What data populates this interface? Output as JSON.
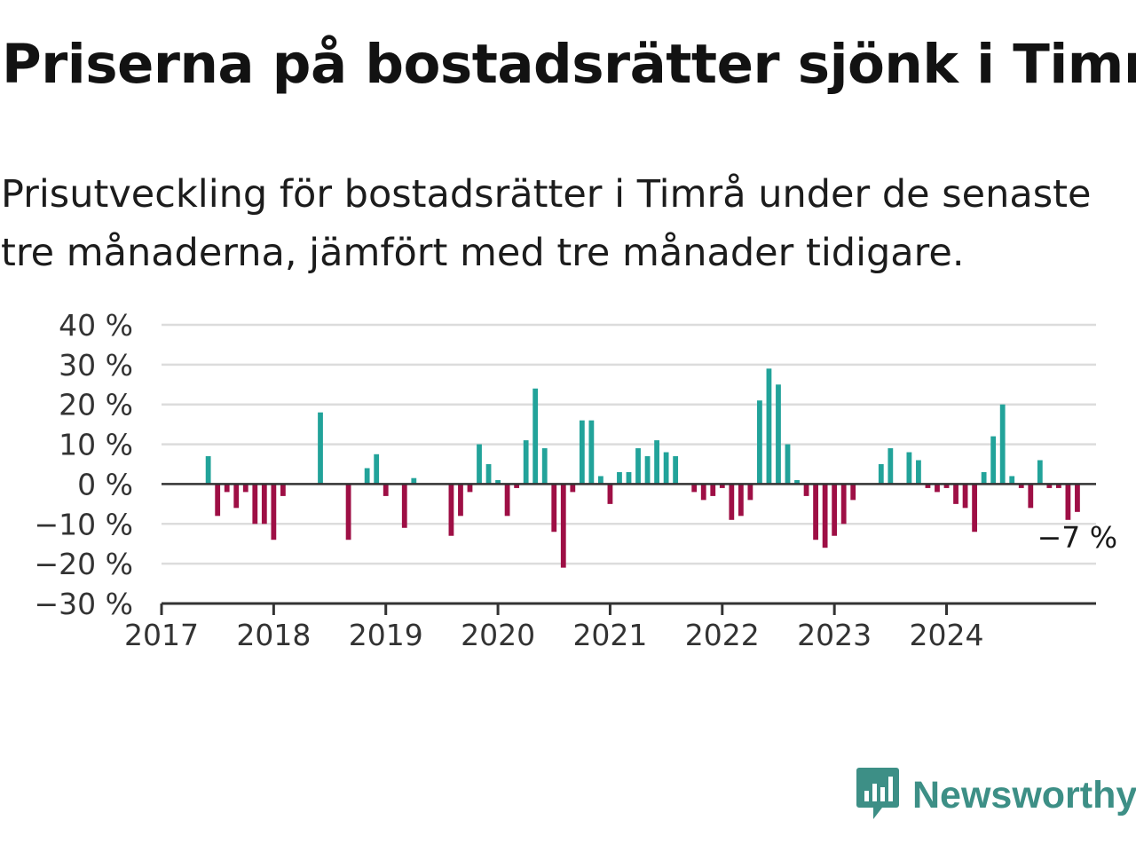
{
  "header": {
    "title": "Priserna på bostadsrätter sjönk i Timrå",
    "subtitle": "Prisutveckling för bostadsrätter i Timrå under de senaste tre månaderna, jämfört med tre månader tidigare."
  },
  "branding": {
    "logo_text": "Newsworthy",
    "logo_icon": "bar-chart-speech-bubble-icon"
  },
  "colors": {
    "positive": "#22a39a",
    "negative": "#9e0f45",
    "gridline": "#dcdcdc",
    "axis": "#333333",
    "brand": "#3d8f86"
  },
  "chart_data": {
    "type": "bar",
    "x_axis_type": "month",
    "start_month": "2017-06",
    "values": [
      7,
      -8,
      -2,
      -6,
      -2,
      -10,
      -10,
      -14,
      -3,
      0,
      0,
      0,
      18,
      0,
      0,
      -14,
      0,
      4,
      7.5,
      -3,
      0,
      -11,
      1.5,
      0,
      0,
      0,
      -13,
      -8,
      -2,
      10,
      5,
      1,
      -8,
      -1,
      11,
      24,
      9,
      -12,
      -21,
      -2,
      16,
      16,
      2,
      -5,
      3,
      3,
      9,
      7,
      11,
      8,
      7,
      0,
      -2,
      -4,
      -3,
      -1,
      -9,
      -8,
      -4,
      21,
      29,
      25,
      10,
      1,
      -3,
      -14,
      -16,
      -13,
      -10,
      -4,
      0,
      0,
      5,
      9,
      0,
      8,
      6,
      -1,
      -2,
      -1,
      -5,
      -6,
      -12,
      3,
      12,
      20,
      2,
      -1,
      -6,
      6,
      -1,
      -1,
      -9,
      -7
    ],
    "x_ticks": [
      "2017",
      "2018",
      "2019",
      "2020",
      "2021",
      "2022",
      "2023",
      "2024"
    ],
    "y_ticks": [
      "40 %",
      "30 %",
      "20 %",
      "10 %",
      "0 %",
      "−10 %",
      "−20 %",
      "−30 %"
    ],
    "ylim": [
      -30,
      40
    ],
    "xlim": [
      "2017-01",
      "2025-05"
    ],
    "grid": true,
    "end_label": "−7 %",
    "title": "Priserna på bostadsrätter sjönk i Timrå",
    "xlabel": "",
    "ylabel": ""
  }
}
